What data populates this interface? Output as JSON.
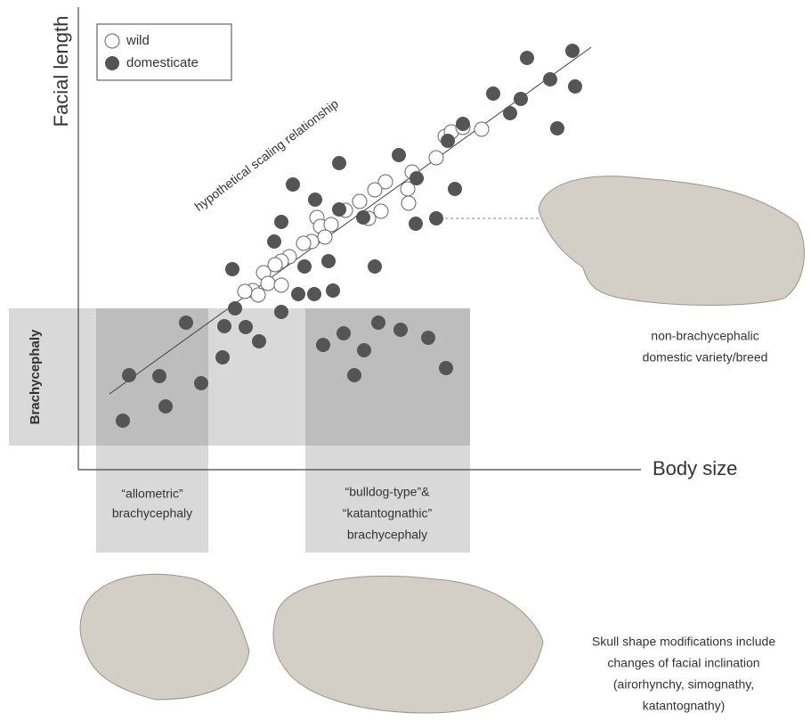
{
  "axes": {
    "y_label": "Facial length",
    "x_label": "Body size"
  },
  "legend": {
    "items": [
      "wild",
      "domesticate"
    ]
  },
  "line_label": "hypothetical scaling relationship",
  "band_label": "Brachycephaly",
  "groups": [
    [
      "“allometric”",
      "brachycephaly"
    ],
    [
      "“bulldog-type”&",
      "“katantognathic”",
      "brachycephaly"
    ]
  ],
  "skull_caption": [
    "non-brachycephalic",
    "domestic variety/breed"
  ],
  "note": [
    "Skull shape modifications include",
    "changes of facial inclination",
    "(airorhynchy, simognathy,",
    "katantognathy)"
  ]
}
